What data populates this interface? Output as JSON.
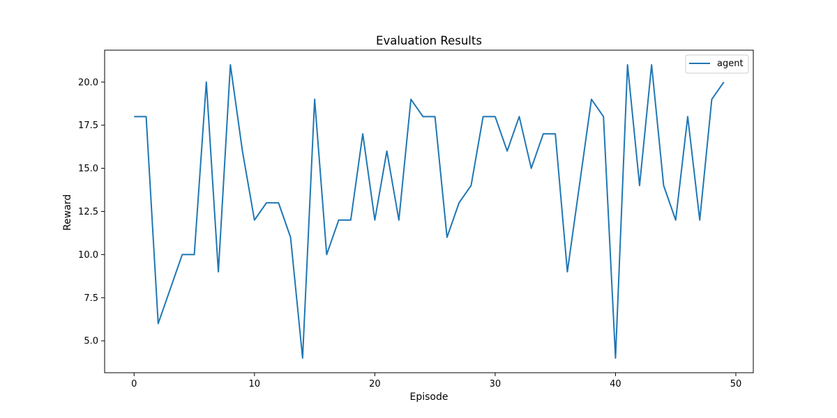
{
  "chart_data": {
    "type": "line",
    "title": "Evaluation Results",
    "xlabel": "Episode",
    "ylabel": "Reward",
    "xlim": [
      -2.45,
      51.45
    ],
    "ylim": [
      3.15,
      21.85
    ],
    "xticks": [
      0,
      10,
      20,
      30,
      40,
      50
    ],
    "yticks": [
      5.0,
      7.5,
      10.0,
      12.5,
      15.0,
      17.5,
      20.0
    ],
    "ytick_labels": [
      "5.0",
      "7.5",
      "10.0",
      "12.5",
      "15.0",
      "17.5",
      "20.0"
    ],
    "grid": false,
    "legend_position": "top-right",
    "series": [
      {
        "name": "agent",
        "color": "#1f77b4",
        "x": [
          0,
          1,
          2,
          3,
          4,
          5,
          6,
          7,
          8,
          9,
          10,
          11,
          12,
          13,
          14,
          15,
          16,
          17,
          18,
          19,
          20,
          21,
          22,
          23,
          24,
          25,
          26,
          27,
          28,
          29,
          30,
          31,
          32,
          33,
          34,
          35,
          36,
          37,
          38,
          39,
          40,
          41,
          42,
          43,
          44,
          45,
          46,
          47,
          48,
          49
        ],
        "values": [
          18,
          18,
          6,
          8,
          10,
          10,
          20,
          9,
          21,
          16,
          12,
          13,
          13,
          11,
          4,
          19,
          10,
          12,
          12,
          17,
          12,
          16,
          12,
          19,
          18,
          18,
          11,
          13,
          14,
          18,
          18,
          16,
          18,
          15,
          17,
          17,
          9,
          14,
          19,
          18,
          4,
          21,
          14,
          21,
          14,
          12,
          18,
          12,
          19,
          20
        ]
      }
    ]
  }
}
